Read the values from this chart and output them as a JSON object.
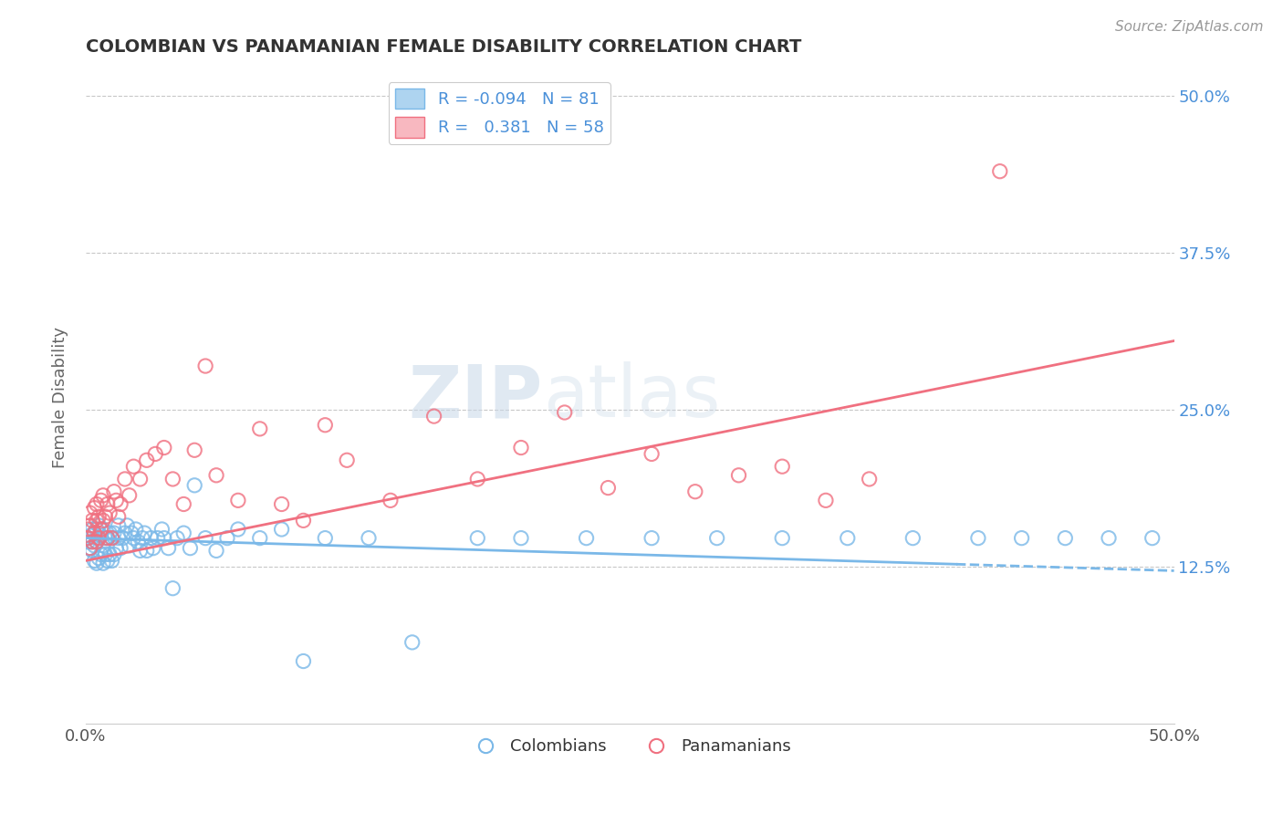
{
  "title": "COLOMBIAN VS PANAMANIAN FEMALE DISABILITY CORRELATION CHART",
  "source": "Source: ZipAtlas.com",
  "ylabel": "Female Disability",
  "xlim": [
    0.0,
    0.5
  ],
  "ylim": [
    0.0,
    0.52
  ],
  "colombian_R": -0.094,
  "colombian_N": 81,
  "panamanian_R": 0.381,
  "panamanian_N": 58,
  "blue_color": "#7ab8e8",
  "pink_color": "#f07080",
  "background_color": "#ffffff",
  "grid_color": "#c8c8c8",
  "title_color": "#333333",
  "colombian_x": [
    0.001,
    0.001,
    0.002,
    0.002,
    0.003,
    0.003,
    0.003,
    0.004,
    0.004,
    0.004,
    0.005,
    0.005,
    0.005,
    0.006,
    0.006,
    0.006,
    0.007,
    0.007,
    0.008,
    0.008,
    0.008,
    0.009,
    0.009,
    0.01,
    0.01,
    0.011,
    0.011,
    0.012,
    0.012,
    0.013,
    0.013,
    0.014,
    0.015,
    0.015,
    0.016,
    0.017,
    0.018,
    0.019,
    0.02,
    0.021,
    0.022,
    0.023,
    0.024,
    0.025,
    0.026,
    0.027,
    0.028,
    0.03,
    0.031,
    0.033,
    0.035,
    0.036,
    0.038,
    0.04,
    0.042,
    0.045,
    0.048,
    0.05,
    0.055,
    0.06,
    0.065,
    0.07,
    0.08,
    0.09,
    0.1,
    0.11,
    0.13,
    0.15,
    0.18,
    0.2,
    0.23,
    0.26,
    0.29,
    0.32,
    0.35,
    0.38,
    0.41,
    0.43,
    0.45,
    0.47,
    0.49
  ],
  "colombian_y": [
    0.145,
    0.148,
    0.14,
    0.15,
    0.138,
    0.145,
    0.155,
    0.13,
    0.142,
    0.152,
    0.128,
    0.145,
    0.155,
    0.132,
    0.148,
    0.158,
    0.135,
    0.15,
    0.128,
    0.142,
    0.155,
    0.135,
    0.148,
    0.13,
    0.148,
    0.135,
    0.152,
    0.13,
    0.148,
    0.135,
    0.152,
    0.14,
    0.148,
    0.158,
    0.14,
    0.148,
    0.152,
    0.158,
    0.142,
    0.152,
    0.148,
    0.155,
    0.145,
    0.138,
    0.148,
    0.152,
    0.138,
    0.148,
    0.14,
    0.148,
    0.155,
    0.148,
    0.14,
    0.108,
    0.148,
    0.152,
    0.14,
    0.19,
    0.148,
    0.138,
    0.148,
    0.155,
    0.148,
    0.155,
    0.05,
    0.148,
    0.148,
    0.065,
    0.148,
    0.148,
    0.148,
    0.148,
    0.148,
    0.148,
    0.148,
    0.148,
    0.148,
    0.148,
    0.148,
    0.148,
    0.148
  ],
  "panamanian_x": [
    0.001,
    0.001,
    0.002,
    0.002,
    0.002,
    0.003,
    0.003,
    0.004,
    0.004,
    0.005,
    0.005,
    0.005,
    0.006,
    0.006,
    0.007,
    0.007,
    0.008,
    0.008,
    0.009,
    0.01,
    0.01,
    0.011,
    0.012,
    0.013,
    0.014,
    0.015,
    0.016,
    0.018,
    0.02,
    0.022,
    0.025,
    0.028,
    0.032,
    0.036,
    0.04,
    0.045,
    0.05,
    0.055,
    0.06,
    0.07,
    0.08,
    0.09,
    0.1,
    0.11,
    0.12,
    0.14,
    0.16,
    0.18,
    0.2,
    0.22,
    0.24,
    0.26,
    0.28,
    0.3,
    0.32,
    0.34,
    0.36,
    0.42
  ],
  "panamanian_y": [
    0.148,
    0.155,
    0.14,
    0.158,
    0.168,
    0.145,
    0.162,
    0.152,
    0.172,
    0.145,
    0.162,
    0.175,
    0.148,
    0.165,
    0.155,
    0.178,
    0.162,
    0.182,
    0.165,
    0.148,
    0.175,
    0.168,
    0.148,
    0.185,
    0.178,
    0.165,
    0.175,
    0.195,
    0.182,
    0.205,
    0.195,
    0.21,
    0.215,
    0.22,
    0.195,
    0.175,
    0.218,
    0.285,
    0.198,
    0.178,
    0.235,
    0.175,
    0.162,
    0.238,
    0.21,
    0.178,
    0.245,
    0.195,
    0.22,
    0.248,
    0.188,
    0.215,
    0.185,
    0.198,
    0.205,
    0.178,
    0.195,
    0.44
  ]
}
